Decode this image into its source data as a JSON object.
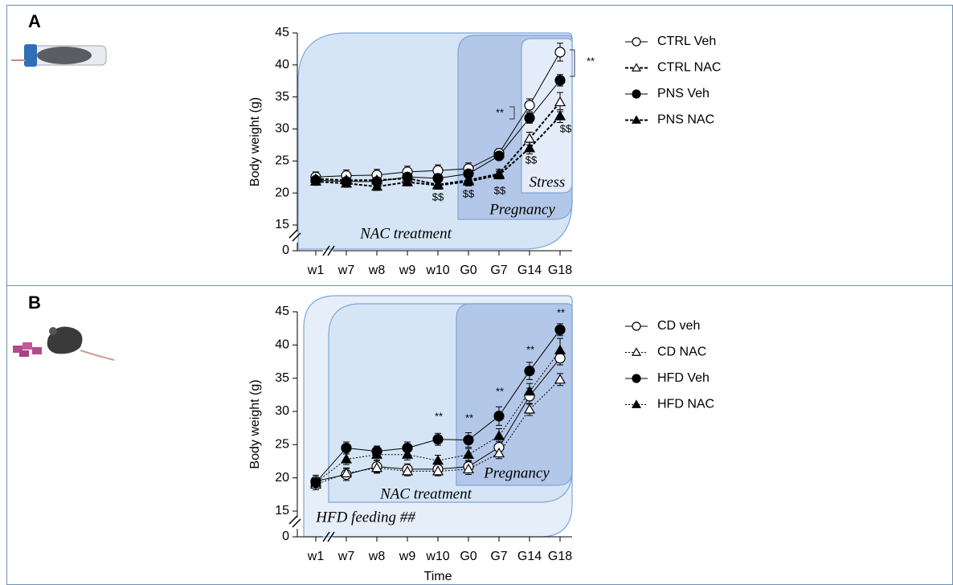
{
  "chart_data": [
    {
      "type": "line",
      "panel": "A",
      "y_label": "Body weight (g)",
      "categories": [
        "w1",
        "w7",
        "w8",
        "w9",
        "w10",
        "G0",
        "G7",
        "G14",
        "G18"
      ],
      "ylim": [
        0,
        45
      ],
      "yticks": [
        0,
        15,
        20,
        25,
        30,
        35,
        40,
        45
      ],
      "axis_break": true,
      "series": [
        {
          "name": "CTRL Veh",
          "color": "#000000",
          "marker": "circle",
          "fill": "open",
          "line_style": "solid",
          "values": [
            22.5,
            22.7,
            22.8,
            23.3,
            23.5,
            23.8,
            26.2,
            33.7,
            42.0
          ],
          "errors": [
            0.8,
            0.9,
            0.9,
            0.9,
            0.9,
            0.9,
            0.7,
            1.0,
            1.4
          ]
        },
        {
          "name": "CTRL NAC",
          "color": "#000000",
          "marker": "triangle",
          "fill": "open",
          "line_style": "dashed",
          "values": [
            22.2,
            22.0,
            22.0,
            22.3,
            21.3,
            22.0,
            23.0,
            28.5,
            34.2
          ],
          "errors": [
            0.7,
            0.7,
            0.7,
            0.7,
            0.7,
            0.8,
            0.7,
            1.0,
            1.5
          ]
        },
        {
          "name": "PNS Veh",
          "color": "#000000",
          "marker": "circle",
          "fill": "filled",
          "line_style": "solid",
          "values": [
            22.0,
            21.8,
            21.8,
            22.5,
            22.3,
            23.0,
            25.8,
            31.7,
            37.6
          ],
          "errors": [
            0.6,
            0.6,
            0.6,
            0.7,
            0.7,
            0.7,
            0.6,
            0.8,
            0.9
          ]
        },
        {
          "name": "PNS NAC",
          "color": "#000000",
          "marker": "triangle",
          "fill": "filled",
          "line_style": "dashed",
          "values": [
            21.8,
            21.5,
            21.0,
            21.7,
            21.2,
            21.8,
            22.8,
            27.0,
            32.0
          ],
          "errors": [
            0.6,
            0.6,
            0.6,
            0.6,
            0.6,
            0.7,
            0.6,
            0.9,
            1.0
          ]
        }
      ],
      "regions": [
        {
          "label": "NAC treatment"
        },
        {
          "label": "Pregnancy"
        },
        {
          "label": "Stress"
        }
      ],
      "annotations": [
        {
          "text": "**"
        },
        {
          "text": "**"
        },
        {
          "text": "$$"
        },
        {
          "text": "$$"
        },
        {
          "text": "$$"
        },
        {
          "text": "$$"
        },
        {
          "text": "$$"
        }
      ]
    },
    {
      "type": "line",
      "panel": "B",
      "y_label": "Body weight (g)",
      "x_label": "Time",
      "categories": [
        "w1",
        "w7",
        "w8",
        "w9",
        "w10",
        "G0",
        "G7",
        "G14",
        "G18"
      ],
      "ylim": [
        0,
        45
      ],
      "yticks": [
        0,
        15,
        20,
        25,
        30,
        35,
        40,
        45
      ],
      "axis_break": true,
      "series": [
        {
          "name": "CD veh",
          "color": "#000000",
          "marker": "circle",
          "fill": "open",
          "line_style": "solid",
          "values": [
            19.5,
            20.5,
            21.7,
            21.3,
            21.3,
            21.7,
            24.6,
            32.3,
            38.0
          ],
          "errors": [
            0.9,
            0.9,
            0.9,
            0.8,
            0.8,
            0.8,
            0.9,
            1.2,
            1.0
          ]
        },
        {
          "name": "CD NAC",
          "color": "#000000",
          "marker": "triangle",
          "fill": "open",
          "line_style": "dotted",
          "values": [
            19.0,
            20.7,
            21.5,
            21.0,
            21.0,
            21.3,
            23.7,
            30.3,
            34.8
          ],
          "errors": [
            0.8,
            0.8,
            0.8,
            0.7,
            0.7,
            0.8,
            0.8,
            0.9,
            0.9
          ]
        },
        {
          "name": "HFD Veh",
          "color": "#000000",
          "marker": "circle",
          "fill": "filled",
          "line_style": "solid",
          "values": [
            19.3,
            24.5,
            24.0,
            24.5,
            25.8,
            25.7,
            29.3,
            36.1,
            42.3
          ],
          "errors": [
            0.8,
            0.9,
            0.8,
            0.9,
            0.9,
            1.1,
            1.4,
            1.3,
            0.9
          ]
        },
        {
          "name": "HFD NAC",
          "color": "#000000",
          "marker": "triangle",
          "fill": "filled",
          "line_style": "dotted",
          "values": [
            19.3,
            22.8,
            23.5,
            23.5,
            22.6,
            23.5,
            26.3,
            33.0,
            39.2
          ],
          "errors": [
            0.8,
            0.8,
            0.8,
            0.8,
            0.8,
            0.9,
            1.1,
            1.2,
            1.8
          ]
        }
      ],
      "regions": [
        {
          "label": "HFD feeding ##"
        },
        {
          "label": "NAC treatment"
        },
        {
          "label": "Pregnancy"
        }
      ],
      "annotations": [
        {
          "text": "**"
        },
        {
          "text": "**"
        },
        {
          "text": "**"
        },
        {
          "text": "**"
        },
        {
          "text": "**"
        }
      ]
    }
  ]
}
